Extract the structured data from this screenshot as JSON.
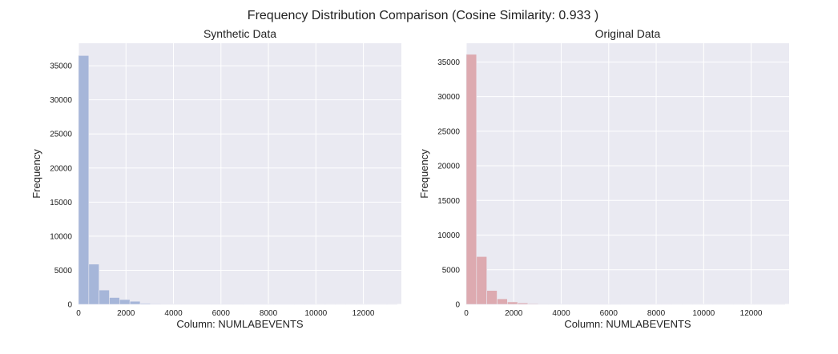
{
  "figure": {
    "title": "Frequency Distribution Comparison (Cosine Similarity: 0.933 )"
  },
  "colors": {
    "panel_bg": "#eaeaf2",
    "grid": "#ffffff",
    "synthetic_bar": "#a6b6d9",
    "original_bar": "#ddaab0"
  },
  "chart_data": [
    {
      "type": "bar",
      "title": "Synthetic Data",
      "xlabel": "Column: NUMLABEVENTS",
      "ylabel": "Frequency",
      "xlim": [
        0,
        13600
      ],
      "ylim": [
        0,
        38300
      ],
      "xticks": [
        0,
        2000,
        4000,
        6000,
        8000,
        10000,
        12000
      ],
      "yticks": [
        0,
        5000,
        10000,
        15000,
        20000,
        25000,
        30000,
        35000
      ],
      "grid": true,
      "bin_width": 433,
      "bin_starts": [
        0,
        433,
        866,
        1299,
        1732,
        2165,
        2598,
        3031,
        3464,
        3897,
        4330,
        4763,
        5196,
        5629,
        6062,
        6495,
        6928,
        7361,
        7794,
        8227,
        8660,
        9093,
        9526,
        9959,
        10392,
        10825,
        11258,
        11691,
        12124,
        12557,
        12990
      ],
      "values": [
        36500,
        5900,
        2100,
        1000,
        700,
        450,
        120,
        80,
        50,
        40,
        30,
        25,
        20,
        15,
        15,
        12,
        10,
        8,
        8,
        6,
        6,
        5,
        5,
        4,
        4,
        3,
        3,
        3,
        2,
        2,
        2
      ]
    },
    {
      "type": "bar",
      "title": "Original Data",
      "xlabel": "Column: NUMLABEVENTS",
      "ylabel": "Frequency",
      "xlim": [
        0,
        13600
      ],
      "ylim": [
        0,
        37700
      ],
      "xticks": [
        0,
        2000,
        4000,
        6000,
        8000,
        10000,
        12000
      ],
      "yticks": [
        0,
        5000,
        10000,
        15000,
        20000,
        25000,
        30000,
        35000
      ],
      "grid": true,
      "bin_width": 433,
      "bin_starts": [
        0,
        433,
        866,
        1299,
        1732,
        2165,
        2598,
        3031,
        3464,
        3897,
        4330,
        4763,
        5196,
        5629,
        6062,
        6495,
        6928,
        7361,
        7794,
        8227,
        8660,
        9093,
        9526,
        9959,
        10392,
        10825,
        11258,
        11691,
        12124,
        12557,
        12990
      ],
      "values": [
        36100,
        6900,
        2000,
        800,
        350,
        200,
        100,
        60,
        40,
        30,
        20,
        15,
        12,
        10,
        8,
        6,
        5,
        5,
        4,
        4,
        3,
        3,
        3,
        2,
        2,
        2,
        2,
        1,
        1,
        1,
        1
      ]
    }
  ]
}
